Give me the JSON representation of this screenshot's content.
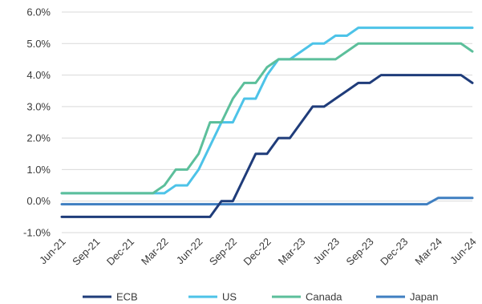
{
  "chart_data": {
    "type": "line",
    "title": "",
    "xlabel": "",
    "ylabel": "",
    "ylim": [
      -1.0,
      6.0
    ],
    "y_ticks": [
      -1.0,
      0.0,
      1.0,
      2.0,
      3.0,
      4.0,
      5.0,
      6.0
    ],
    "y_tick_labels": [
      "-1.0%",
      "0.0%",
      "1.0%",
      "2.0%",
      "3.0%",
      "4.0%",
      "5.0%",
      "6.0%"
    ],
    "x_start": "2021-06",
    "x_end": "2024-06",
    "x_tick_labels": [
      "Jun-21",
      "Sep-21",
      "Dec-21",
      "Mar-22",
      "Jun-22",
      "Sep-22",
      "Dec-22",
      "Mar-23",
      "Jun-23",
      "Sep-23",
      "Dec-23",
      "Mar-24",
      "Jun-24"
    ],
    "grid": "horizontal",
    "legend_position": "bottom",
    "series": [
      {
        "name": "ECB",
        "color": "#1f3c7a",
        "points": [
          [
            "2021-06",
            -0.5
          ],
          [
            "2022-07",
            -0.5
          ],
          [
            "2022-08",
            0.0
          ],
          [
            "2022-09",
            0.0
          ],
          [
            "2022-10",
            0.75
          ],
          [
            "2022-11",
            1.5
          ],
          [
            "2022-12",
            1.5
          ],
          [
            "2023-01",
            2.0
          ],
          [
            "2023-02",
            2.0
          ],
          [
            "2023-03",
            2.5
          ],
          [
            "2023-04",
            3.0
          ],
          [
            "2023-05",
            3.0
          ],
          [
            "2023-06",
            3.25
          ],
          [
            "2023-07",
            3.5
          ],
          [
            "2023-08",
            3.75
          ],
          [
            "2023-09",
            3.75
          ],
          [
            "2023-10",
            4.0
          ],
          [
            "2024-05",
            4.0
          ],
          [
            "2024-06",
            3.75
          ]
        ]
      },
      {
        "name": "US",
        "color": "#4dc3e8",
        "points": [
          [
            "2021-06",
            0.25
          ],
          [
            "2022-03",
            0.25
          ],
          [
            "2022-04",
            0.5
          ],
          [
            "2022-05",
            0.5
          ],
          [
            "2022-06",
            1.0
          ],
          [
            "2022-07",
            1.75
          ],
          [
            "2022-08",
            2.5
          ],
          [
            "2022-09",
            2.5
          ],
          [
            "2022-10",
            3.25
          ],
          [
            "2022-11",
            3.25
          ],
          [
            "2022-12",
            4.0
          ],
          [
            "2023-01",
            4.5
          ],
          [
            "2023-02",
            4.5
          ],
          [
            "2023-03",
            4.75
          ],
          [
            "2023-04",
            5.0
          ],
          [
            "2023-05",
            5.0
          ],
          [
            "2023-06",
            5.25
          ],
          [
            "2023-07",
            5.25
          ],
          [
            "2023-08",
            5.5
          ],
          [
            "2024-06",
            5.5
          ]
        ]
      },
      {
        "name": "Canada",
        "color": "#5cbf9b",
        "points": [
          [
            "2021-06",
            0.25
          ],
          [
            "2022-02",
            0.25
          ],
          [
            "2022-03",
            0.5
          ],
          [
            "2022-04",
            1.0
          ],
          [
            "2022-05",
            1.0
          ],
          [
            "2022-06",
            1.5
          ],
          [
            "2022-07",
            2.5
          ],
          [
            "2022-08",
            2.5
          ],
          [
            "2022-09",
            3.25
          ],
          [
            "2022-10",
            3.75
          ],
          [
            "2022-11",
            3.75
          ],
          [
            "2022-12",
            4.25
          ],
          [
            "2023-01",
            4.5
          ],
          [
            "2023-06",
            4.5
          ],
          [
            "2023-07",
            4.75
          ],
          [
            "2023-08",
            5.0
          ],
          [
            "2024-05",
            5.0
          ],
          [
            "2024-06",
            4.75
          ]
        ]
      },
      {
        "name": "Japan",
        "color": "#3f7fc1",
        "points": [
          [
            "2021-06",
            -0.1
          ],
          [
            "2024-02",
            -0.1
          ],
          [
            "2024-03",
            0.1
          ],
          [
            "2024-06",
            0.1
          ]
        ]
      }
    ]
  }
}
